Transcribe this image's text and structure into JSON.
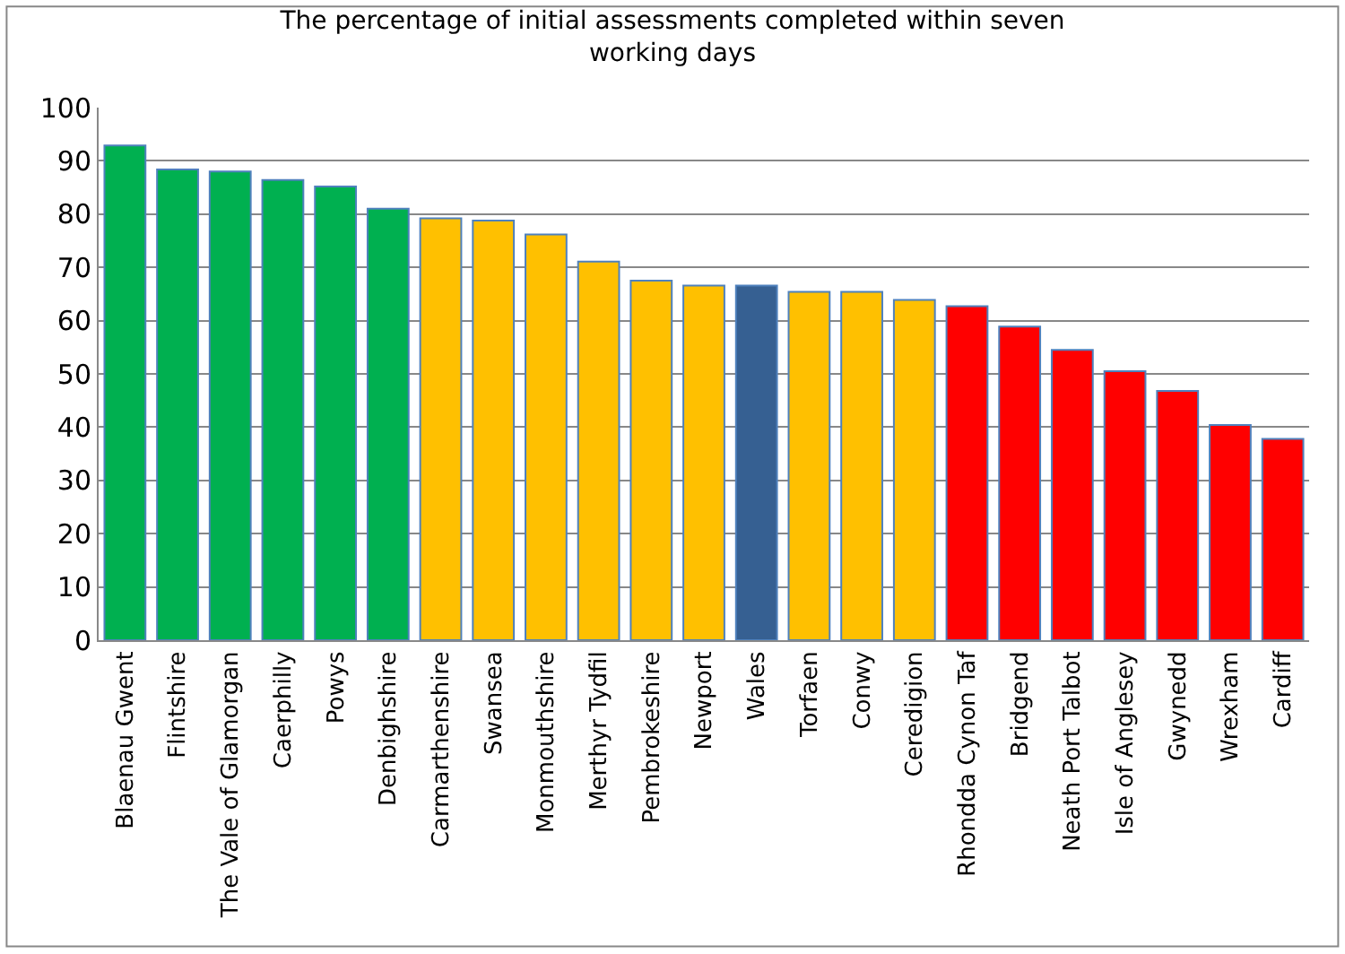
{
  "chart_data": {
    "type": "bar",
    "title": "The percentage of initial assessments completed within seven working days",
    "categories": [
      "Blaenau Gwent",
      "Flintshire",
      "The Vale of Glamorgan",
      "Caerphilly",
      "Powys",
      "Denbighshire",
      "Carmarthenshire",
      "Swansea",
      "Monmouthshire",
      "Merthyr Tydfil",
      "Pembrokeshire",
      "Newport",
      "Wales",
      "Torfaen",
      "Conwy",
      "Ceredigion",
      "Rhondda Cynon Taf",
      "Bridgend",
      "Neath Port Talbot",
      "Isle of Anglesey",
      "Gwynedd",
      "Wrexham",
      "Cardiff"
    ],
    "values": [
      92.9,
      88.4,
      88,
      86.4,
      85.2,
      81,
      79.2,
      78.8,
      76.2,
      71.1,
      67.5,
      66.6,
      66.6,
      65.4,
      65.4,
      63.9,
      62.7,
      58.9,
      54.5,
      50.5,
      46.8,
      40.4,
      37.8
    ],
    "colors": [
      "#00b050",
      "#00b050",
      "#00b050",
      "#00b050",
      "#00b050",
      "#00b050",
      "#ffc000",
      "#ffc000",
      "#ffc000",
      "#ffc000",
      "#ffc000",
      "#ffc000",
      "#366092",
      "#ffc000",
      "#ffc000",
      "#ffc000",
      "#ff0000",
      "#ff0000",
      "#ff0000",
      "#ff0000",
      "#ff0000",
      "#ff0000",
      "#ff0000"
    ],
    "ylim": [
      0,
      100
    ],
    "yticks": [
      0,
      10,
      20,
      30,
      40,
      50,
      60,
      70,
      80,
      90,
      100
    ],
    "grid": "y"
  }
}
